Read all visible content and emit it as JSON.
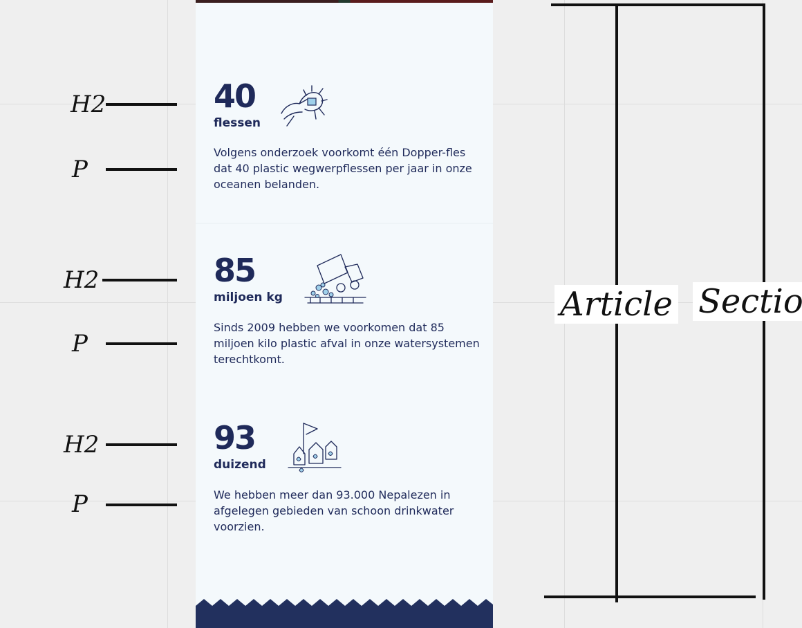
{
  "stats": [
    {
      "number": "40",
      "unit": "flessen",
      "text": "Volgens onderzoek voorkomt één Dopper-fles dat 40 plastic wegwerpflessen per jaar in onze oceanen belanden.",
      "illustration": "hand-squeezing-bottle-icon"
    },
    {
      "number": "85",
      "unit": "miljoen kg",
      "text": "Sinds 2009 hebben we voorkomen dat 85 miljoen kilo plastic afval in onze watersystemen terechtkomt.",
      "illustration": "dump-truck-plastic-icon"
    },
    {
      "number": "93",
      "unit": "duizend",
      "text": "We hebben meer dan 93.000 Nepalezen in afgelegen gebieden van schoon drinkwater voorzien.",
      "illustration": "village-flag-water-icon"
    }
  ],
  "annotations": {
    "h2_label": "H2",
    "p_label": "P",
    "article_label": "Article",
    "section_label": "Section"
  },
  "colors": {
    "navy": "#1f2a5a",
    "panel": "#f4f9fc",
    "ink": "#111111"
  }
}
